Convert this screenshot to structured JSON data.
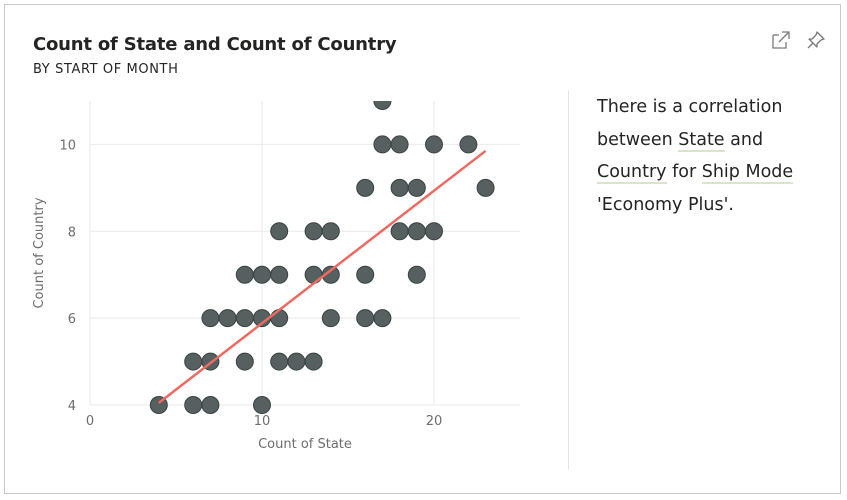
{
  "header": {
    "title": "Count of State and Count of Country",
    "subtitle": "BY START OF MONTH"
  },
  "toolbar": {
    "icons": [
      "focus-mode-icon",
      "pin-icon"
    ]
  },
  "narrative": {
    "p1": "There is a correlation between ",
    "term1": "State",
    "p2": " and ",
    "term2": "Country",
    "p3": " for ",
    "term3": "Ship Mode",
    "p4": " 'Economy Plus'."
  },
  "colors": {
    "point_fill": "#4d5757",
    "point_stroke": "#3a4242",
    "trend_line": "#ee6a60",
    "grid": "#e9e9e9",
    "term_underline": "#d9e5c9"
  },
  "chart_data": {
    "type": "scatter",
    "title": "Count of State and Count of Country",
    "subtitle": "BY START OF MONTH",
    "xlabel": "Count of State",
    "ylabel": "Count of Country",
    "xlim": [
      0,
      25
    ],
    "ylim": [
      4,
      11
    ],
    "xticks": [
      0,
      10,
      20
    ],
    "yticks": [
      4,
      6,
      8,
      10
    ],
    "grid": true,
    "points": [
      {
        "x": 4,
        "y": 4
      },
      {
        "x": 6,
        "y": 4
      },
      {
        "x": 7,
        "y": 4
      },
      {
        "x": 10,
        "y": 4
      },
      {
        "x": 6,
        "y": 5
      },
      {
        "x": 7,
        "y": 5
      },
      {
        "x": 9,
        "y": 5
      },
      {
        "x": 11,
        "y": 5
      },
      {
        "x": 12,
        "y": 5
      },
      {
        "x": 13,
        "y": 5
      },
      {
        "x": 7,
        "y": 6
      },
      {
        "x": 8,
        "y": 6
      },
      {
        "x": 9,
        "y": 6
      },
      {
        "x": 10,
        "y": 6
      },
      {
        "x": 11,
        "y": 6
      },
      {
        "x": 14,
        "y": 6
      },
      {
        "x": 16,
        "y": 6
      },
      {
        "x": 17,
        "y": 6
      },
      {
        "x": 9,
        "y": 7
      },
      {
        "x": 10,
        "y": 7
      },
      {
        "x": 11,
        "y": 7
      },
      {
        "x": 13,
        "y": 7
      },
      {
        "x": 14,
        "y": 7
      },
      {
        "x": 16,
        "y": 7
      },
      {
        "x": 19,
        "y": 7
      },
      {
        "x": 11,
        "y": 8
      },
      {
        "x": 13,
        "y": 8
      },
      {
        "x": 14,
        "y": 8
      },
      {
        "x": 18,
        "y": 8
      },
      {
        "x": 19,
        "y": 8
      },
      {
        "x": 20,
        "y": 8
      },
      {
        "x": 16,
        "y": 9
      },
      {
        "x": 18,
        "y": 9
      },
      {
        "x": 19,
        "y": 9
      },
      {
        "x": 23,
        "y": 9
      },
      {
        "x": 17,
        "y": 10
      },
      {
        "x": 18,
        "y": 10
      },
      {
        "x": 20,
        "y": 10
      },
      {
        "x": 22,
        "y": 10
      },
      {
        "x": 17,
        "y": 11
      }
    ],
    "trend_line": {
      "x": [
        4,
        23
      ],
      "y": [
        4.05,
        9.85
      ]
    }
  }
}
